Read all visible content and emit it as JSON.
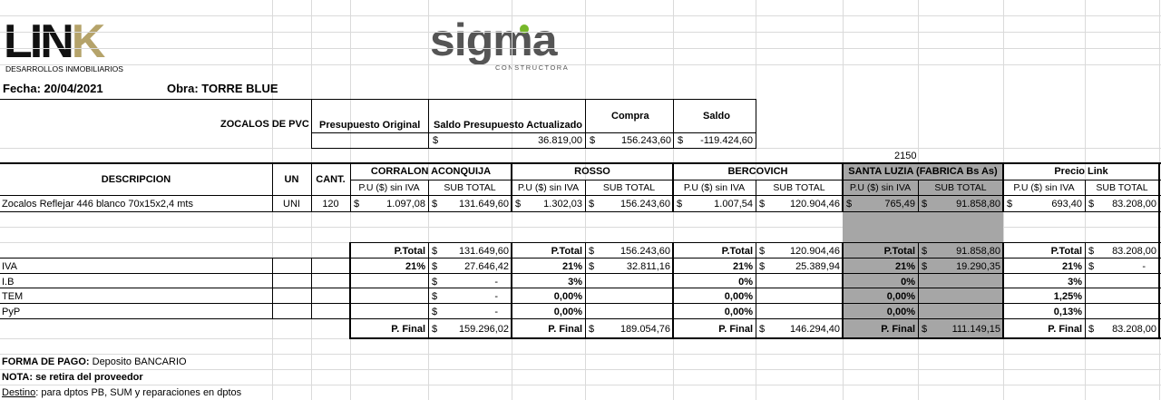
{
  "logos": {
    "link": {
      "name": "LINK",
      "subtitle": "DESARROLLOS INMOBILIARIOS"
    },
    "sigma": {
      "name": "sigma",
      "subtitle": "CONSTRUCTORA"
    }
  },
  "header": {
    "fecha": "Fecha: 20/04/2021",
    "obra": "Obra: TORRE BLUE"
  },
  "summary": {
    "title": "ZOCALOS DE PVC",
    "cols": [
      "Presupuesto Original",
      "Saldo Presupuesto Actualizado",
      "Compra",
      "Saldo"
    ],
    "currency": "$",
    "saldo_presupuesto": "36.819,00",
    "compra": "156.243,60",
    "saldo": "-119.424,60"
  },
  "note_2150": "2150",
  "table": {
    "col_descripcion": "DESCRIPCION",
    "col_un": "UN",
    "col_cant": "CANT.",
    "pu_label": "P.U ($) sin IVA",
    "sub_label": "SUB TOTAL",
    "vendors": [
      "CORRALON ACONQUIJA",
      "ROSSO",
      "BERCOVICH",
      "SANTA LUZIA (FABRICA Bs As)",
      "Precio Link"
    ],
    "item": {
      "descripcion": "Zocalos Reflejar 446 blanco 70x15x2,4 mts",
      "un": "UNI",
      "cant": "120",
      "pu": [
        "1.097,08",
        "1.302,03",
        "1.007,54",
        "765,49",
        "693,40"
      ],
      "sub": [
        "131.649,60",
        "156.243,60",
        "120.904,46",
        "91.858,80",
        "83.208,00"
      ]
    },
    "ptotal_label": "P.Total",
    "ptotal": [
      "131.649,60",
      "156.243,60",
      "120.904,46",
      "91.858,80",
      "83.208,00"
    ],
    "iva_label": "IVA",
    "iva_pct": [
      "21%",
      "21%",
      "21%",
      "21%",
      "21%"
    ],
    "iva_val": [
      "27.646,42",
      "32.811,16",
      "25.389,94",
      "19.290,35",
      "-"
    ],
    "ib_label": "I.B",
    "ib_pct": [
      "",
      "3%",
      "0%",
      "0%",
      "3%"
    ],
    "tem_label": "TEM",
    "tem_pct": [
      "",
      "0,00%",
      "0,00%",
      "0,00%",
      "1,25%"
    ],
    "pyp_label": "PyP",
    "pyp_pct": [
      "",
      "0,00%",
      "0,00%",
      "0,00%",
      "0,13%"
    ],
    "dash": "-",
    "pfinal_label": "P. Final",
    "pfinal": [
      "159.296,02",
      "189.054,76",
      "146.294,40",
      "111.149,15",
      "83.208,00"
    ]
  },
  "footer": {
    "forma_label": "FORMA DE PAGO:",
    "forma_value": "Deposito BANCARIO",
    "nota": "NOTA: se retira del proveedor",
    "destino_label": "Destino",
    "destino_value": ": para dptos PB, SUM y reparaciones en dptos"
  },
  "colors": {
    "shade": "#a6a6a6",
    "sigma_gray": "#555555",
    "sigma_green": "#77b82a",
    "link_gold": "#b5a36a"
  }
}
